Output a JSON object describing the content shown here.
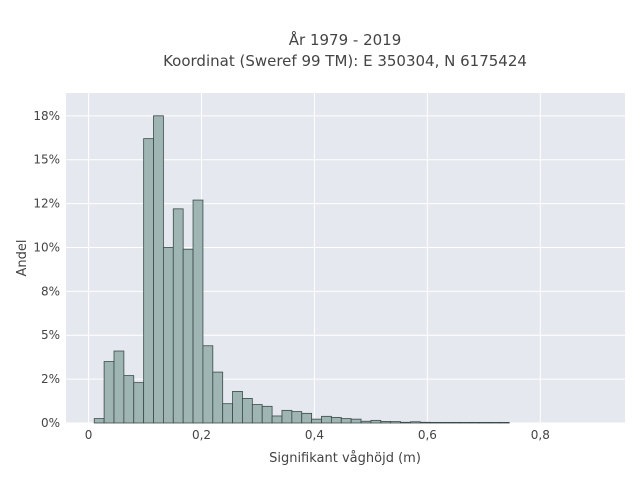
{
  "chart_data": {
    "type": "bar",
    "title_line1": "År 1979 - 2019",
    "title_line2": "Koordinat (Sweref 99 TM): E 350304, N 6175424",
    "xlabel": "Signifikant våghöjd (m)",
    "ylabel": "Andel",
    "xlim": [
      -0.04,
      0.95
    ],
    "ylim": [
      0,
      0.188
    ],
    "grid": true,
    "x_ticks": [
      {
        "value": 0,
        "label": "0"
      },
      {
        "value": 0.2,
        "label": "0,2"
      },
      {
        "value": 0.4,
        "label": "0,4"
      },
      {
        "value": 0.6,
        "label": "0,6"
      },
      {
        "value": 0.8,
        "label": "0,8"
      }
    ],
    "y_ticks": [
      {
        "value": 0,
        "label": "0%"
      },
      {
        "value": 0.025,
        "label": "2%"
      },
      {
        "value": 0.05,
        "label": "5%"
      },
      {
        "value": 0.075,
        "label": "8%"
      },
      {
        "value": 0.1,
        "label": "10%"
      },
      {
        "value": 0.125,
        "label": "12%"
      },
      {
        "value": 0.15,
        "label": "15%"
      },
      {
        "value": 0.175,
        "label": "18%"
      }
    ],
    "bin_width": 0.0175,
    "bin_starts": [
      0.01,
      0.0275,
      0.045,
      0.0625,
      0.08,
      0.0975,
      0.115,
      0.1325,
      0.15,
      0.1675,
      0.185,
      0.2025,
      0.22,
      0.2375,
      0.255,
      0.2725,
      0.29,
      0.3075,
      0.325,
      0.3425,
      0.36,
      0.3775,
      0.395,
      0.4125,
      0.43,
      0.4475,
      0.465,
      0.4825,
      0.5,
      0.5175,
      0.535,
      0.5525,
      0.57,
      0.5875,
      0.605,
      0.6225,
      0.64,
      0.6575,
      0.675,
      0.6925,
      0.71,
      0.7275
    ],
    "values": [
      0.0025,
      0.035,
      0.041,
      0.027,
      0.023,
      0.162,
      0.175,
      0.1,
      0.122,
      0.099,
      0.127,
      0.044,
      0.029,
      0.011,
      0.018,
      0.014,
      0.0105,
      0.0095,
      0.004,
      0.0072,
      0.0065,
      0.0055,
      0.0022,
      0.0038,
      0.0032,
      0.0025,
      0.0022,
      0.001,
      0.0015,
      0.0009,
      0.0008,
      0.0004,
      0.0007,
      0.0004,
      0.0003,
      0.0003,
      0.0002,
      0.0002,
      0.0002,
      0.0001,
      0.0001,
      0.0001
    ]
  }
}
